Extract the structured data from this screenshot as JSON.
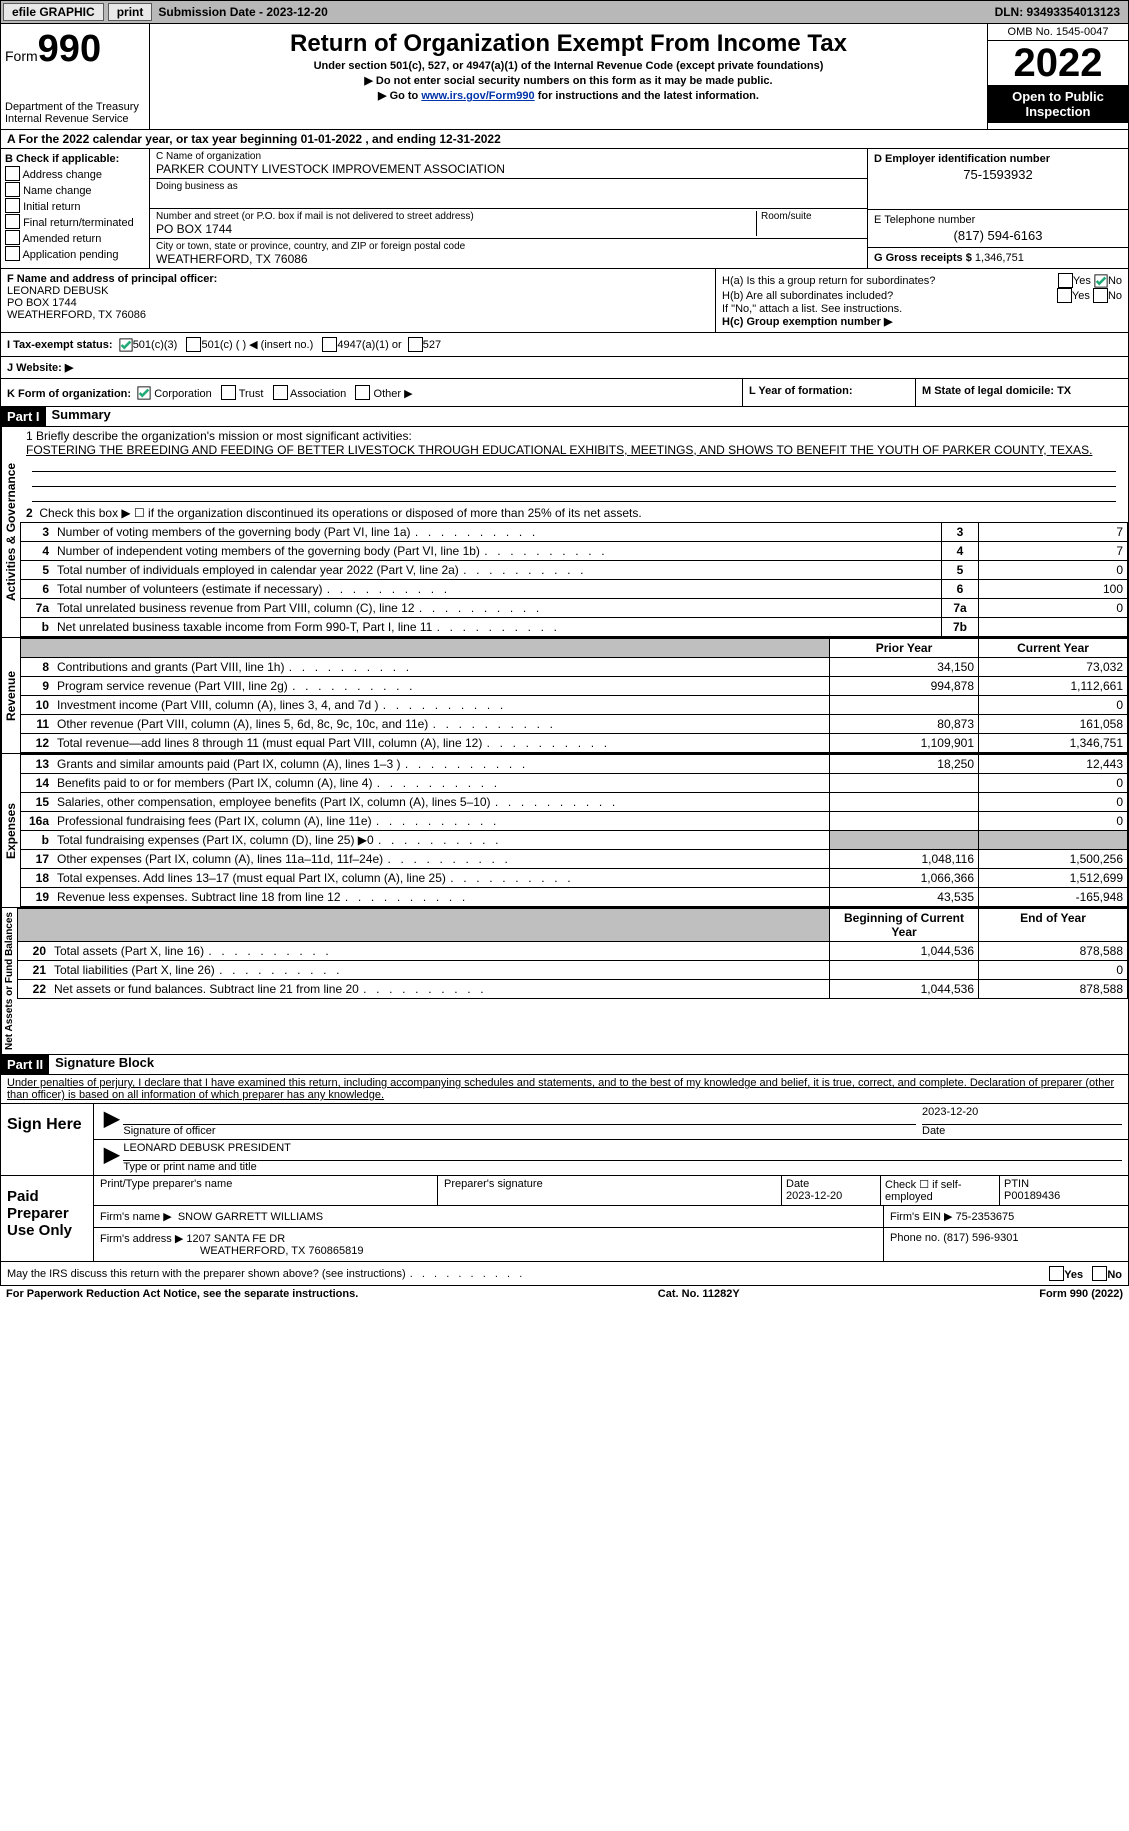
{
  "topbar": {
    "efile": "efile GRAPHIC",
    "print": "print",
    "sub_label": "Submission Date - 2023-12-20",
    "dln": "DLN: 93493354013123"
  },
  "header": {
    "form_word": "Form",
    "form_num": "990",
    "dept": "Department of the Treasury Internal Revenue Service",
    "title": "Return of Organization Exempt From Income Tax",
    "subtitle": "Under section 501(c), 527, or 4947(a)(1) of the Internal Revenue Code (except private foundations)",
    "note1": "▶ Do not enter social security numbers on this form as it may be made public.",
    "note2_pre": "▶ Go to ",
    "note2_link": "www.irs.gov/Form990",
    "note2_post": " for instructions and the latest information.",
    "omb": "OMB No. 1545-0047",
    "year": "2022",
    "open": "Open to Public Inspection"
  },
  "periodA": "A For the 2022 calendar year, or tax year beginning 01-01-2022   , and ending 12-31-2022",
  "boxB": {
    "label": "B Check if applicable:",
    "opts": [
      "Address change",
      "Name change",
      "Initial return",
      "Final return/terminated",
      "Amended return",
      "Application pending"
    ]
  },
  "boxC": {
    "name_lbl": "C Name of organization",
    "name": "PARKER COUNTY LIVESTOCK IMPROVEMENT ASSOCIATION",
    "dba_lbl": "Doing business as",
    "dba": "",
    "street_lbl": "Number and street (or P.O. box if mail is not delivered to street address)",
    "room_lbl": "Room/suite",
    "street": "PO BOX 1744",
    "city_lbl": "City or town, state or province, country, and ZIP or foreign postal code",
    "city": "WEATHERFORD, TX  76086"
  },
  "boxD": {
    "lbl": "D Employer identification number",
    "val": "75-1593932"
  },
  "boxE": {
    "lbl": "E Telephone number",
    "val": "(817) 594-6163"
  },
  "boxG": {
    "lbl": "G Gross receipts $",
    "val": "1,346,751"
  },
  "boxF": {
    "lbl": "F Name and address of principal officer:",
    "name": "LEONARD DEBUSK",
    "addr1": "PO BOX 1744",
    "addr2": "WEATHERFORD, TX  76086"
  },
  "boxH": {
    "a": "H(a)  Is this a group return for subordinates?",
    "b": "H(b)  Are all subordinates included?",
    "b_note": "If \"No,\" attach a list. See instructions.",
    "c": "H(c)  Group exemption number ▶"
  },
  "boxI": {
    "lbl": "I  Tax-exempt status:",
    "o1": "501(c)(3)",
    "o2": "501(c) (   ) ◀ (insert no.)",
    "o3": "4947(a)(1) or",
    "o4": "527"
  },
  "boxJ": "J  Website: ▶",
  "boxK": {
    "lbl": "K Form of organization:",
    "o1": "Corporation",
    "o2": "Trust",
    "o3": "Association",
    "o4": "Other ▶"
  },
  "boxL": "L Year of formation:",
  "boxM": "M State of legal domicile: TX",
  "part1": {
    "hdr": "Part I",
    "title": "Summary"
  },
  "mission": {
    "lbl": "1  Briefly describe the organization's mission or most significant activities:",
    "txt": "FOSTERING THE BREEDING AND FEEDING OF BETTER LIVESTOCK THROUGH EDUCATIONAL EXHIBITS, MEETINGS, AND SHOWS TO BENEFIT THE YOUTH OF PARKER COUNTY, TEXAS."
  },
  "line2": "Check this box ▶ ☐  if the organization discontinued its operations or disposed of more than 25% of its net assets.",
  "governance": [
    {
      "n": "3",
      "d": "Number of voting members of the governing body (Part VI, line 1a)",
      "b": "3",
      "v": "7"
    },
    {
      "n": "4",
      "d": "Number of independent voting members of the governing body (Part VI, line 1b)",
      "b": "4",
      "v": "7"
    },
    {
      "n": "5",
      "d": "Total number of individuals employed in calendar year 2022 (Part V, line 2a)",
      "b": "5",
      "v": "0"
    },
    {
      "n": "6",
      "d": "Total number of volunteers (estimate if necessary)",
      "b": "6",
      "v": "100"
    },
    {
      "n": "7a",
      "d": "Total unrelated business revenue from Part VIII, column (C), line 12",
      "b": "7a",
      "v": "0"
    },
    {
      "n": "b",
      "d": "Net unrelated business taxable income from Form 990-T, Part I, line 11",
      "b": "7b",
      "v": ""
    }
  ],
  "col_prior": "Prior Year",
  "col_current": "Current Year",
  "revenue": [
    {
      "n": "8",
      "d": "Contributions and grants (Part VIII, line 1h)",
      "p": "34,150",
      "c": "73,032"
    },
    {
      "n": "9",
      "d": "Program service revenue (Part VIII, line 2g)",
      "p": "994,878",
      "c": "1,112,661"
    },
    {
      "n": "10",
      "d": "Investment income (Part VIII, column (A), lines 3, 4, and 7d )",
      "p": "",
      "c": "0"
    },
    {
      "n": "11",
      "d": "Other revenue (Part VIII, column (A), lines 5, 6d, 8c, 9c, 10c, and 11e)",
      "p": "80,873",
      "c": "161,058"
    },
    {
      "n": "12",
      "d": "Total revenue—add lines 8 through 11 (must equal Part VIII, column (A), line 12)",
      "p": "1,109,901",
      "c": "1,346,751"
    }
  ],
  "expenses": [
    {
      "n": "13",
      "d": "Grants and similar amounts paid (Part IX, column (A), lines 1–3 )",
      "p": "18,250",
      "c": "12,443"
    },
    {
      "n": "14",
      "d": "Benefits paid to or for members (Part IX, column (A), line 4)",
      "p": "",
      "c": "0"
    },
    {
      "n": "15",
      "d": "Salaries, other compensation, employee benefits (Part IX, column (A), lines 5–10)",
      "p": "",
      "c": "0"
    },
    {
      "n": "16a",
      "d": "Professional fundraising fees (Part IX, column (A), line 11e)",
      "p": "",
      "c": "0"
    },
    {
      "n": "b",
      "d": "Total fundraising expenses (Part IX, column (D), line 25) ▶0",
      "p": "GREY",
      "c": "GREY"
    },
    {
      "n": "17",
      "d": "Other expenses (Part IX, column (A), lines 11a–11d, 11f–24e)",
      "p": "1,048,116",
      "c": "1,500,256"
    },
    {
      "n": "18",
      "d": "Total expenses. Add lines 13–17 (must equal Part IX, column (A), line 25)",
      "p": "1,066,366",
      "c": "1,512,699"
    },
    {
      "n": "19",
      "d": "Revenue less expenses. Subtract line 18 from line 12",
      "p": "43,535",
      "c": "-165,948"
    }
  ],
  "col_begin": "Beginning of Current Year",
  "col_end": "End of Year",
  "netassets": [
    {
      "n": "20",
      "d": "Total assets (Part X, line 16)",
      "p": "1,044,536",
      "c": "878,588"
    },
    {
      "n": "21",
      "d": "Total liabilities (Part X, line 26)",
      "p": "",
      "c": "0"
    },
    {
      "n": "22",
      "d": "Net assets or fund balances. Subtract line 21 from line 20",
      "p": "1,044,536",
      "c": "878,588"
    }
  ],
  "part2": {
    "hdr": "Part II",
    "title": "Signature Block"
  },
  "penalties": "Under penalties of perjury, I declare that I have examined this return, including accompanying schedules and statements, and to the best of my knowledge and belief, it is true, correct, and complete. Declaration of preparer (other than officer) is based on all information of which preparer has any knowledge.",
  "sign": {
    "here": "Sign Here",
    "sig_lbl": "Signature of officer",
    "date": "2023-12-20",
    "date_lbl": "Date",
    "name": "LEONARD DEBUSK  PRESIDENT",
    "name_lbl": "Type or print name and title"
  },
  "paid": {
    "here": "Paid Preparer Use Only",
    "prep_name_lbl": "Print/Type preparer's name",
    "prep_sig_lbl": "Preparer's signature",
    "prep_date_lbl": "Date",
    "prep_date": "2023-12-20",
    "check_lbl": "Check ☐ if self-employed",
    "ptin_lbl": "PTIN",
    "ptin": "P00189436",
    "firm_name_lbl": "Firm's name    ▶",
    "firm_name": "SNOW GARRETT WILLIAMS",
    "firm_ein_lbl": "Firm's EIN ▶",
    "firm_ein": "75-2353675",
    "firm_addr_lbl": "Firm's address ▶",
    "firm_addr": "1207 SANTA FE DR",
    "firm_addr2": "WEATHERFORD, TX  760865819",
    "phone_lbl": "Phone no.",
    "phone": "(817) 596-9301"
  },
  "discuss": "May the IRS discuss this return with the preparer shown above? (see instructions)",
  "footer": {
    "left": "For Paperwork Reduction Act Notice, see the separate instructions.",
    "mid": "Cat. No. 11282Y",
    "right": "Form 990 (2022)"
  },
  "yesno": {
    "yes": "Yes",
    "no": "No"
  },
  "vtabs": {
    "gov": "Activities & Governance",
    "rev": "Revenue",
    "exp": "Expenses",
    "net": "Net Assets or Fund Balances"
  }
}
